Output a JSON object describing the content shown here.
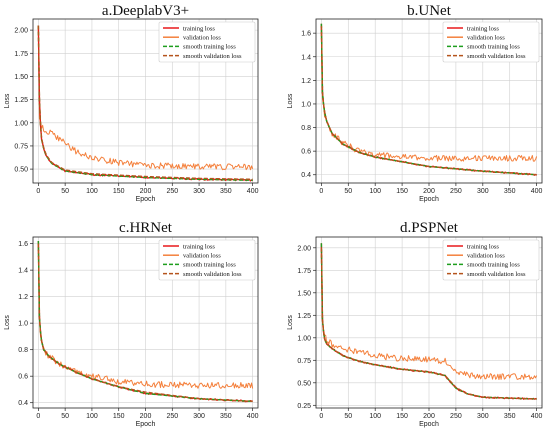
{
  "colors": {
    "training_loss": "#e8191a",
    "validation_loss": "#f4803c",
    "smooth_training_loss": "#1e9e1e",
    "smooth_validation_loss": "#b5541c"
  },
  "chart_data": [
    {
      "type": "line",
      "title": "a.DeeplabV3+",
      "xlabel": "Epoch",
      "ylabel": "Loss",
      "xlim": [
        -10,
        410
      ],
      "ylim": [
        0.35,
        2.12
      ],
      "xticks": [
        0,
        50,
        100,
        150,
        200,
        250,
        300,
        350,
        400
      ],
      "yticks": [
        0.5,
        0.75,
        1.0,
        1.25,
        1.5,
        1.75,
        2.0
      ],
      "ytick_labels": [
        "0.50",
        "0.75",
        "1.00",
        "1.25",
        "1.50",
        "1.75",
        "2.00"
      ],
      "grid": true,
      "legend_position": "top-right",
      "series": [
        {
          "name": "training loss",
          "x": [
            0,
            2,
            5,
            10,
            15,
            25,
            50,
            100,
            200,
            300,
            400
          ],
          "values": [
            2.05,
            1.25,
            0.85,
            0.72,
            0.64,
            0.56,
            0.48,
            0.44,
            0.41,
            0.39,
            0.38
          ]
        },
        {
          "name": "validation loss",
          "x": [
            0,
            2,
            5,
            10,
            20,
            30,
            50,
            70,
            100,
            150,
            200,
            300,
            400
          ],
          "values": [
            2.05,
            1.05,
            0.97,
            0.92,
            0.9,
            0.86,
            0.78,
            0.69,
            0.62,
            0.57,
            0.54,
            0.53,
            0.52
          ]
        },
        {
          "name": "smooth training loss",
          "x": [
            0,
            2,
            5,
            10,
            15,
            25,
            50,
            100,
            200,
            300,
            400
          ],
          "values": [
            2.05,
            1.25,
            0.85,
            0.72,
            0.64,
            0.56,
            0.48,
            0.44,
            0.41,
            0.39,
            0.38
          ]
        },
        {
          "name": "smooth validation loss",
          "x": [
            0,
            2,
            5,
            10,
            15,
            25,
            50,
            100,
            200,
            300,
            400
          ],
          "values": [
            2.05,
            1.25,
            0.86,
            0.73,
            0.65,
            0.57,
            0.49,
            0.45,
            0.42,
            0.4,
            0.39
          ]
        }
      ]
    },
    {
      "type": "line",
      "title": "b.UNet",
      "xlabel": "Epoch",
      "ylabel": "Loss",
      "xlim": [
        -10,
        410
      ],
      "ylim": [
        0.33,
        1.72
      ],
      "xticks": [
        0,
        50,
        100,
        150,
        200,
        250,
        300,
        350,
        400
      ],
      "yticks": [
        0.4,
        0.6,
        0.8,
        1.0,
        1.2,
        1.4,
        1.6
      ],
      "ytick_labels": [
        "0.4",
        "0.6",
        "0.8",
        "1.0",
        "1.2",
        "1.4",
        "1.6"
      ],
      "grid": true,
      "legend_position": "top-right",
      "series": [
        {
          "name": "training loss",
          "x": [
            0,
            2,
            5,
            10,
            20,
            40,
            70,
            100,
            150,
            200,
            300,
            400
          ],
          "values": [
            1.68,
            1.1,
            0.95,
            0.85,
            0.75,
            0.66,
            0.59,
            0.55,
            0.51,
            0.47,
            0.43,
            0.4
          ]
        },
        {
          "name": "validation loss",
          "x": [
            0,
            2,
            5,
            10,
            20,
            40,
            70,
            100,
            150,
            200,
            300,
            400
          ],
          "values": [
            1.6,
            1.05,
            0.93,
            0.84,
            0.75,
            0.67,
            0.6,
            0.57,
            0.55,
            0.54,
            0.54,
            0.54
          ]
        },
        {
          "name": "smooth training loss",
          "x": [
            0,
            2,
            5,
            10,
            20,
            40,
            70,
            100,
            150,
            200,
            300,
            400
          ],
          "values": [
            1.68,
            1.1,
            0.95,
            0.85,
            0.75,
            0.66,
            0.59,
            0.55,
            0.51,
            0.47,
            0.43,
            0.4
          ]
        },
        {
          "name": "smooth validation loss",
          "x": [
            0,
            2,
            5,
            10,
            20,
            40,
            70,
            100,
            150,
            200,
            300,
            400
          ],
          "values": [
            1.66,
            1.1,
            0.95,
            0.85,
            0.75,
            0.66,
            0.59,
            0.55,
            0.51,
            0.47,
            0.43,
            0.4
          ]
        }
      ]
    },
    {
      "type": "line",
      "title": "c.HRNet",
      "xlabel": "Epoch",
      "ylabel": "Loss",
      "xlim": [
        -10,
        410
      ],
      "ylim": [
        0.36,
        1.65
      ],
      "xticks": [
        0,
        50,
        100,
        150,
        200,
        250,
        300,
        350,
        400
      ],
      "yticks": [
        0.4,
        0.6,
        0.8,
        1.0,
        1.2,
        1.4,
        1.6
      ],
      "ytick_labels": [
        "0.4",
        "0.6",
        "0.8",
        "1.0",
        "1.2",
        "1.4",
        "1.6"
      ],
      "grid": true,
      "legend_position": "top-right",
      "series": [
        {
          "name": "training loss",
          "x": [
            0,
            2,
            5,
            10,
            20,
            40,
            70,
            100,
            150,
            200,
            300,
            400
          ],
          "values": [
            1.62,
            1.05,
            0.88,
            0.8,
            0.75,
            0.69,
            0.63,
            0.58,
            0.52,
            0.47,
            0.43,
            0.41
          ]
        },
        {
          "name": "validation loss",
          "x": [
            0,
            2,
            5,
            10,
            20,
            40,
            70,
            100,
            150,
            200,
            300,
            400
          ],
          "values": [
            1.6,
            1.03,
            0.87,
            0.8,
            0.75,
            0.69,
            0.64,
            0.6,
            0.56,
            0.54,
            0.53,
            0.53
          ]
        },
        {
          "name": "smooth training loss",
          "x": [
            0,
            2,
            5,
            10,
            20,
            40,
            70,
            100,
            150,
            200,
            300,
            400
          ],
          "values": [
            1.62,
            1.05,
            0.88,
            0.8,
            0.75,
            0.69,
            0.63,
            0.58,
            0.52,
            0.47,
            0.43,
            0.41
          ]
        },
        {
          "name": "smooth validation loss",
          "x": [
            0,
            2,
            5,
            10,
            20,
            40,
            70,
            100,
            150,
            200,
            300,
            400
          ],
          "values": [
            1.6,
            1.04,
            0.88,
            0.8,
            0.75,
            0.69,
            0.63,
            0.58,
            0.52,
            0.48,
            0.43,
            0.41
          ]
        }
      ]
    },
    {
      "type": "line",
      "title": "d.PSPNet",
      "xlabel": "Epoch",
      "ylabel": "Loss",
      "xlim": [
        -10,
        410
      ],
      "ylim": [
        0.22,
        2.12
      ],
      "xticks": [
        0,
        50,
        100,
        150,
        200,
        250,
        300,
        350,
        400
      ],
      "yticks": [
        0.25,
        0.5,
        0.75,
        1.0,
        1.25,
        1.5,
        1.75,
        2.0
      ],
      "ytick_labels": [
        "0.25",
        "0.50",
        "0.75",
        "1.00",
        "1.25",
        "1.50",
        "1.75",
        "2.00"
      ],
      "grid": true,
      "legend_position": "top-right",
      "series": [
        {
          "name": "training loss",
          "x": [
            0,
            2,
            5,
            10,
            20,
            40,
            70,
            100,
            150,
            200,
            230,
            250,
            270,
            300,
            350,
            400
          ],
          "values": [
            2.05,
            1.2,
            1.0,
            0.93,
            0.88,
            0.8,
            0.74,
            0.7,
            0.65,
            0.62,
            0.58,
            0.44,
            0.38,
            0.34,
            0.33,
            0.32
          ]
        },
        {
          "name": "validation loss",
          "x": [
            0,
            2,
            5,
            10,
            20,
            40,
            70,
            100,
            150,
            200,
            230,
            250,
            270,
            300,
            350,
            400
          ],
          "values": [
            1.9,
            1.25,
            1.05,
            0.97,
            0.93,
            0.88,
            0.84,
            0.8,
            0.77,
            0.76,
            0.74,
            0.64,
            0.59,
            0.57,
            0.57,
            0.57
          ]
        },
        {
          "name": "smooth training loss",
          "x": [
            0,
            2,
            5,
            10,
            20,
            40,
            70,
            100,
            150,
            200,
            230,
            250,
            270,
            300,
            350,
            400
          ],
          "values": [
            2.05,
            1.2,
            1.0,
            0.93,
            0.88,
            0.8,
            0.74,
            0.7,
            0.65,
            0.62,
            0.58,
            0.44,
            0.38,
            0.34,
            0.33,
            0.32
          ]
        },
        {
          "name": "smooth validation loss",
          "x": [
            0,
            2,
            5,
            10,
            20,
            40,
            70,
            100,
            150,
            200,
            230,
            250,
            270,
            300,
            350,
            400
          ],
          "values": [
            2.0,
            1.2,
            1.0,
            0.93,
            0.88,
            0.8,
            0.74,
            0.7,
            0.65,
            0.62,
            0.58,
            0.45,
            0.38,
            0.34,
            0.33,
            0.32
          ]
        }
      ]
    }
  ]
}
